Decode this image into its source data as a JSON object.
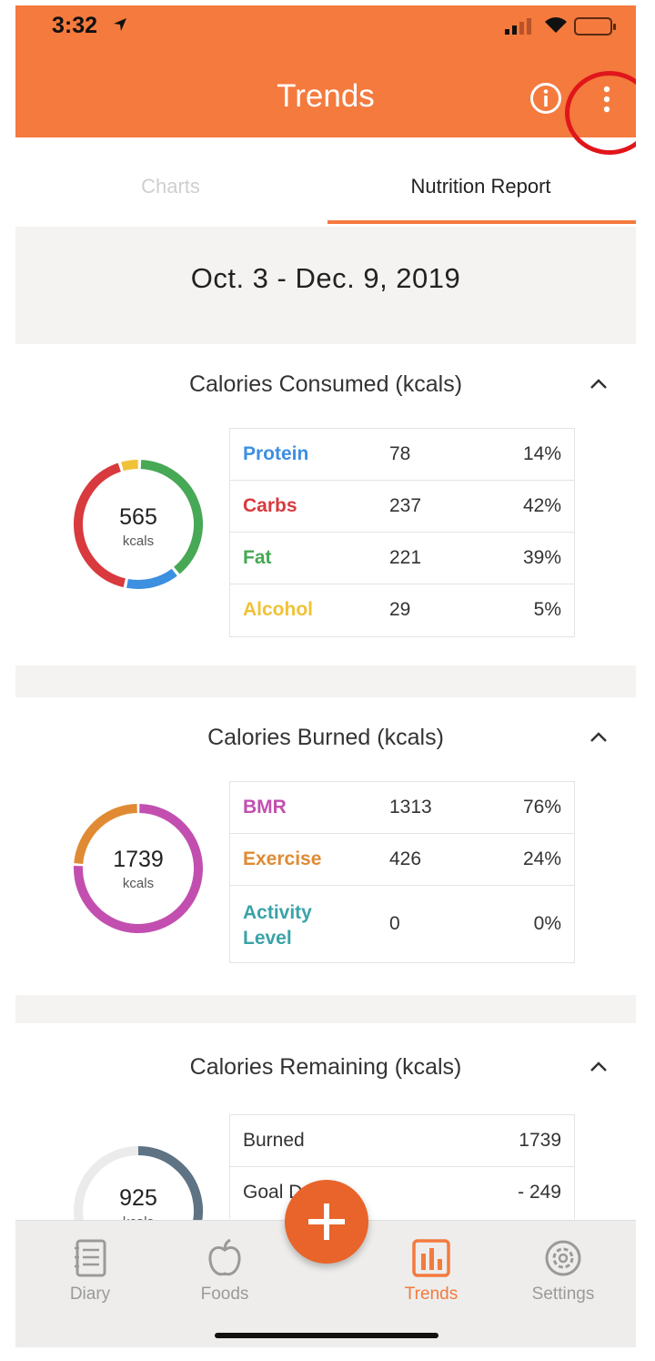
{
  "status": {
    "time": "3:32"
  },
  "header": {
    "title": "Trends"
  },
  "tabs": [
    {
      "label": "Charts"
    },
    {
      "label": "Nutrition Report"
    }
  ],
  "date_range": "Oct. 3 - Dec. 9, 2019",
  "consumed": {
    "title": "Calories Consumed (kcals)",
    "total": "565",
    "unit": "kcals",
    "rows": [
      {
        "name": "Protein",
        "value": "78",
        "pct": "14%",
        "color": "#3d8fe0"
      },
      {
        "name": "Carbs",
        "value": "237",
        "pct": "42%",
        "color": "#d83a3e"
      },
      {
        "name": "Fat",
        "value": "221",
        "pct": "39%",
        "color": "#47a855"
      },
      {
        "name": "Alcohol",
        "value": "29",
        "pct": "5%",
        "color": "#f0c237"
      }
    ]
  },
  "burned": {
    "title": "Calories Burned (kcals)",
    "total": "1739",
    "unit": "kcals",
    "rows": [
      {
        "name": "BMR",
        "value": "1313",
        "pct": "76%",
        "color": "#c24fb0"
      },
      {
        "name": "Exercise",
        "value": "426",
        "pct": "24%",
        "color": "#e08b33"
      },
      {
        "name": "Activity Level",
        "value": "0",
        "pct": "0%",
        "color": "#3aa3a8"
      }
    ]
  },
  "remaining": {
    "title": "Calories Remaining (kcals)",
    "total": "925",
    "unit": "kcals",
    "rows": [
      {
        "label": "Burned",
        "value": "1739"
      },
      {
        "label": "Goal Deficit",
        "value": "- 249"
      }
    ],
    "color": "#5e7384"
  },
  "nav": [
    {
      "label": "Diary"
    },
    {
      "label": "Foods"
    },
    {
      "label": "Trends"
    },
    {
      "label": "Settings"
    }
  ],
  "colors": {
    "brand": "#f47a3e",
    "fab": "#e8642a",
    "highlight": "#e0161b"
  }
}
